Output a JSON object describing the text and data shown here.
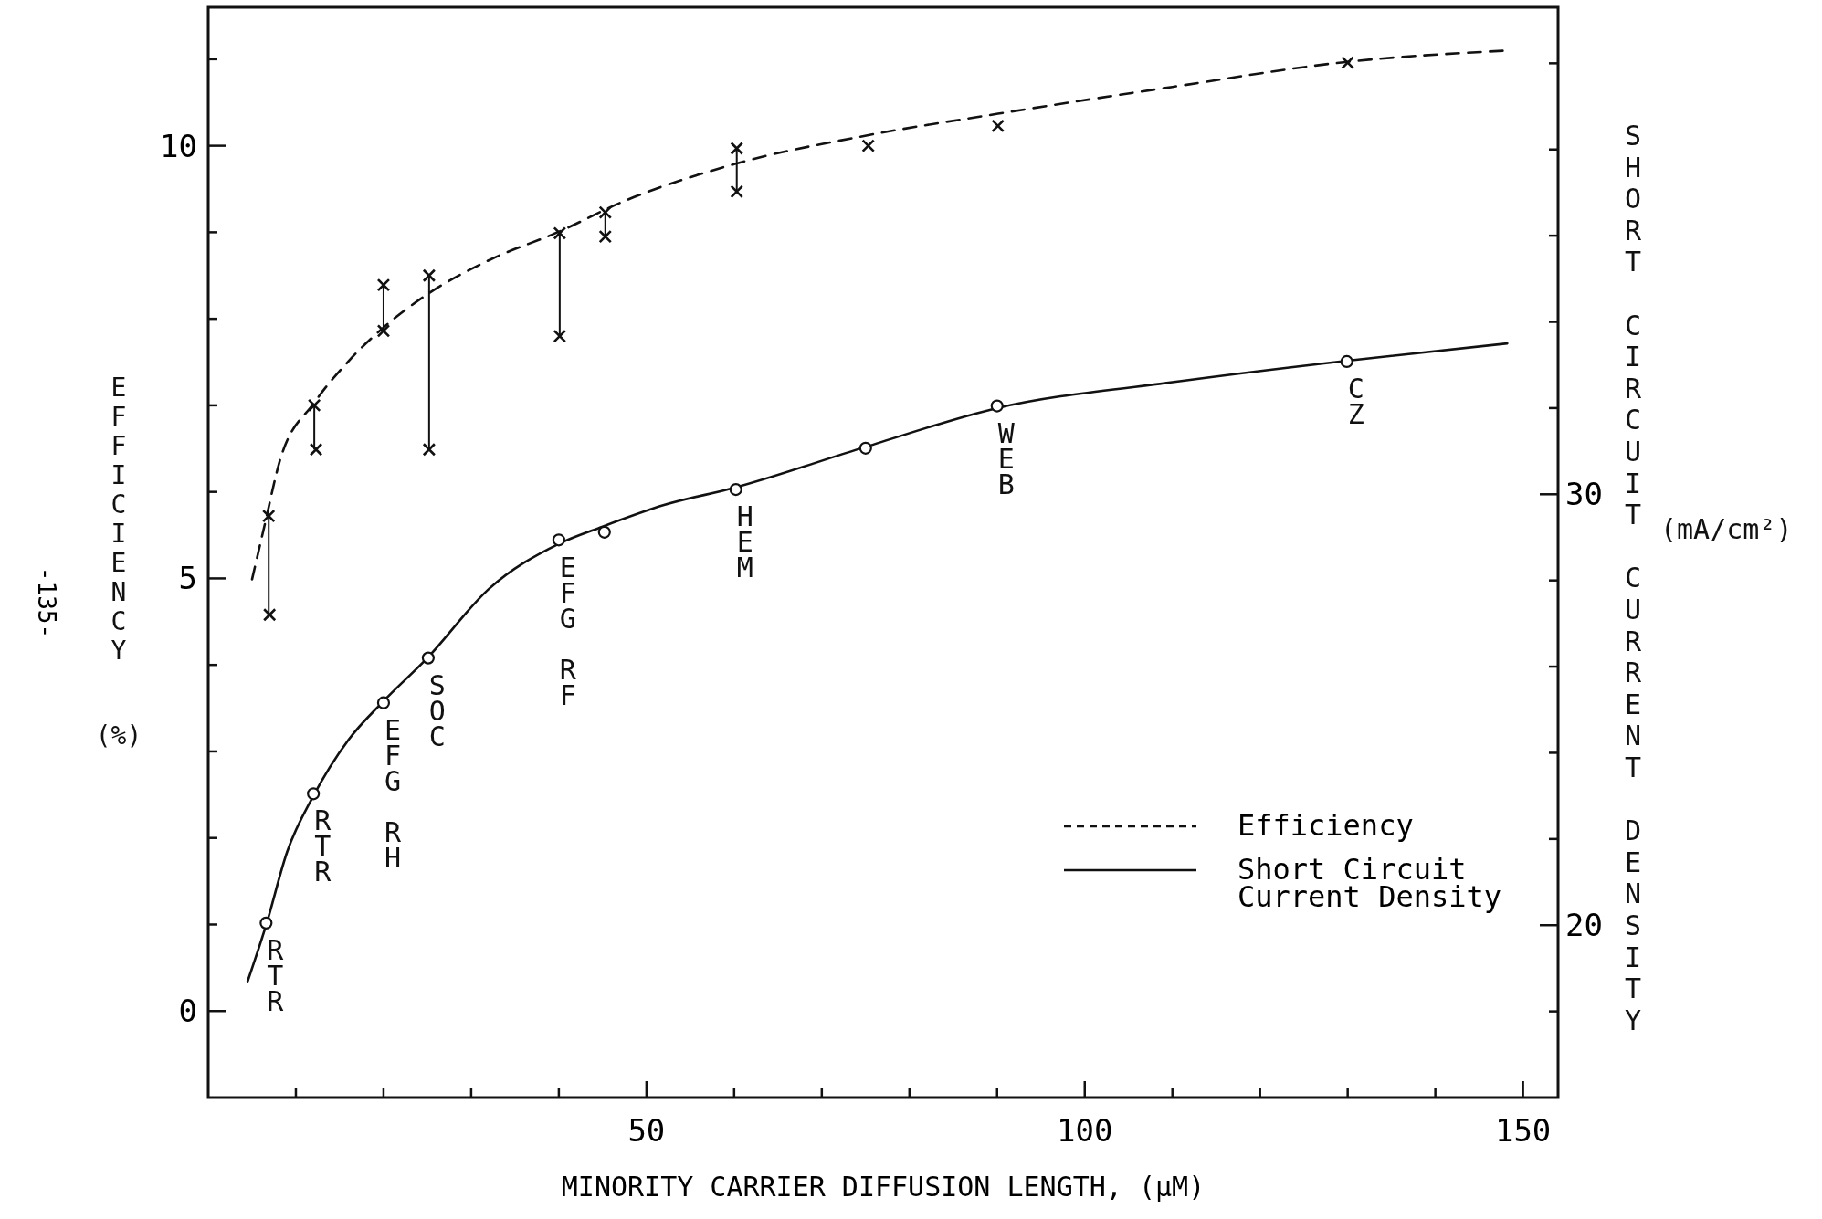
{
  "chart_data": {
    "type": "line",
    "xlabel": "MINORITY CARRIER DIFFUSION LENGTH, (μM)",
    "ylabel": "EFFICIENCY (%)",
    "y2label": "SHORT CIRCUIT CURRENT DENSITY (mA/cm²)",
    "xlim": [
      0,
      154
    ],
    "ylim": [
      -1,
      11.6
    ],
    "y2lim": [
      16,
      41.3
    ],
    "xticks": [
      {
        "value": 10,
        "label": null
      },
      {
        "value": 20,
        "label": null
      },
      {
        "value": 30,
        "label": null
      },
      {
        "value": 40,
        "label": null
      },
      50,
      {
        "value": 60,
        "label": null
      },
      {
        "value": 70,
        "label": null
      },
      {
        "value": 80,
        "label": null
      },
      {
        "value": 90,
        "label": null
      },
      100,
      {
        "value": 110,
        "label": null
      },
      {
        "value": 120,
        "label": null
      },
      {
        "value": 130,
        "label": null
      },
      {
        "value": 140,
        "label": null
      },
      150
    ],
    "yticks": [
      0,
      {
        "value": 1,
        "label": null
      },
      {
        "value": 2,
        "label": null
      },
      {
        "value": 3,
        "label": null
      },
      {
        "value": 4,
        "label": null
      },
      5,
      {
        "value": 6,
        "label": null
      },
      {
        "value": 7,
        "label": null
      },
      {
        "value": 8,
        "label": null
      },
      {
        "value": 9,
        "label": null
      },
      10,
      {
        "value": 11,
        "label": null
      }
    ],
    "y2ticks": [
      {
        "value": 18,
        "label": null
      },
      20,
      {
        "value": 22,
        "label": null
      },
      {
        "value": 24,
        "label": null
      },
      {
        "value": 26,
        "label": null
      },
      {
        "value": 28,
        "label": null
      },
      30,
      {
        "value": 32,
        "label": null
      },
      {
        "value": 34,
        "label": null
      },
      {
        "value": 36,
        "label": null
      },
      {
        "value": 38,
        "label": null
      },
      {
        "value": 40,
        "label": null
      }
    ],
    "legend": "bottom right",
    "series": [
      {
        "name": "Efficiency",
        "line_style": "dashed",
        "marker": "none",
        "color": "#111111",
        "x": [
          5,
          6.4,
          8.2,
          12.1,
          16,
          20,
          25.1,
          32.1,
          40.1,
          47,
          60.1,
          75.2,
          90.1,
          110,
          130,
          148.2
        ],
        "values": [
          4.99,
          5.6,
          6.37,
          7.03,
          7.51,
          7.9,
          8.29,
          8.68,
          9.01,
          9.34,
          9.79,
          10.12,
          10.37,
          10.68,
          10.97,
          11.1
        ]
      },
      {
        "type": "scatter",
        "marker": "cross",
        "color": "#111111",
        "x": [
          6.9,
          7,
          12.1,
          12.3,
          20,
          20,
          25.2,
          25.2,
          40.1,
          40.1,
          45.3,
          45.3,
          60.3,
          60.3,
          75.3,
          90.1,
          130
        ],
        "values": [
          5.72,
          4.58,
          7.0,
          6.49,
          8.39,
          7.86,
          8.5,
          6.49,
          8.99,
          7.8,
          9.23,
          8.95,
          9.97,
          9.47,
          10.0,
          10.23,
          10.96
        ],
        "errors": [
          [
            4.58,
            5.72
          ],
          null,
          [
            6.49,
            7.0
          ],
          null,
          [
            7.86,
            8.39
          ],
          null,
          [
            6.49,
            8.5
          ],
          null,
          [
            7.8,
            8.99
          ],
          null,
          [
            8.95,
            9.23
          ],
          null,
          [
            9.47,
            9.97
          ],
          null,
          null,
          null,
          null
        ]
      },
      {
        "name": "Short Circuit Current Density",
        "axis": "y2",
        "line_style": "solid",
        "marker": "none",
        "color": "#111111",
        "x": [
          4.5,
          6.6,
          9,
          12,
          16,
          20,
          25,
          32,
          40,
          45,
          52,
          60,
          75,
          90,
          110,
          130,
          148.2
        ],
        "values": [
          18.7,
          20.0,
          21.7,
          23.0,
          24.3,
          25.2,
          26.2,
          27.8,
          28.85,
          29.25,
          29.75,
          30.15,
          31.1,
          32.0,
          32.6,
          33.1,
          33.5
        ]
      },
      {
        "type": "scatter",
        "axis": "y2",
        "marker": "circle",
        "color": "#111111",
        "x": [
          6.6,
          12,
          20,
          25.1,
          40,
          45.2,
          60.2,
          75,
          90,
          129.9
        ],
        "values": [
          20.05,
          23.05,
          25.16,
          26.2,
          28.94,
          29.12,
          30.11,
          31.07,
          32.05,
          33.08
        ]
      }
    ],
    "annotations": [
      {
        "text": "RTR",
        "x": 6.6,
        "y": 1.02
      },
      {
        "text": "RTR",
        "x": 12,
        "y": 2.51
      },
      {
        "text": "EFG RH",
        "x": 20,
        "y": 3.56
      },
      {
        "text": "SOC",
        "x": 25.1,
        "y": 4.08
      },
      {
        "text": "EFG RF",
        "x": 40,
        "y": 5.44
      },
      {
        "text": "HEM",
        "x": 60.2,
        "y": 6.03
      },
      {
        "text": "WEB",
        "x": 90,
        "y": 6.99
      },
      {
        "text": "CZ",
        "x": 129.9,
        "y": 7.51
      },
      "-135-"
    ]
  }
}
